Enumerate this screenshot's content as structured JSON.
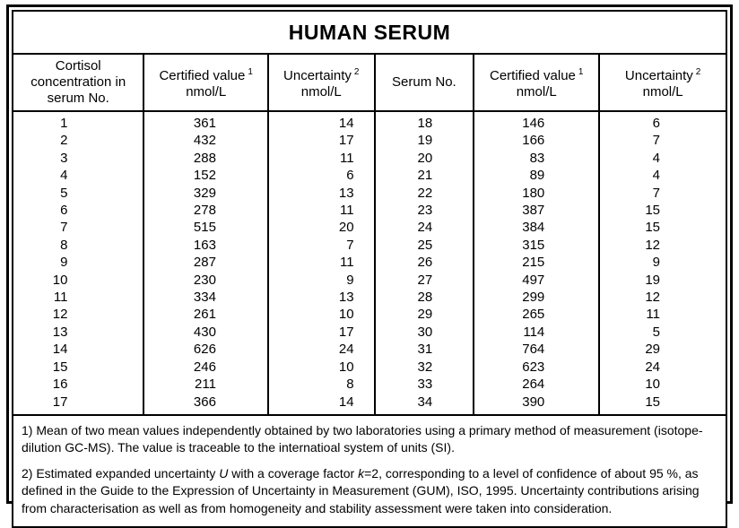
{
  "title": "HUMAN SERUM",
  "table": {
    "columns": [
      {
        "label": "Cortisol concentration in serum No.",
        "sup": "",
        "unit": ""
      },
      {
        "label": "Certified value",
        "sup": "1",
        "unit": "nmol/L"
      },
      {
        "label": "Uncertainty",
        "sup": "2",
        "unit": "nmol/L"
      },
      {
        "label": "Serum No.",
        "sup": "",
        "unit": ""
      },
      {
        "label": "Certified value",
        "sup": "1",
        "unit": "nmol/L"
      },
      {
        "label": "Uncertainty",
        "sup": "2",
        "unit": "nmol/L"
      }
    ],
    "rows": [
      [
        "1",
        "361",
        "14",
        "18",
        "146",
        "6"
      ],
      [
        "2",
        "432",
        "17",
        "19",
        "166",
        "7"
      ],
      [
        "3",
        "288",
        "11",
        "20",
        "83",
        "4"
      ],
      [
        "4",
        "152",
        "6",
        "21",
        "89",
        "4"
      ],
      [
        "5",
        "329",
        "13",
        "22",
        "180",
        "7"
      ],
      [
        "6",
        "278",
        "11",
        "23",
        "387",
        "15"
      ],
      [
        "7",
        "515",
        "20",
        "24",
        "384",
        "15"
      ],
      [
        "8",
        "163",
        "7",
        "25",
        "315",
        "12"
      ],
      [
        "9",
        "287",
        "11",
        "26",
        "215",
        "9"
      ],
      [
        "10",
        "230",
        "9",
        "27",
        "497",
        "19"
      ],
      [
        "11",
        "334",
        "13",
        "28",
        "299",
        "12"
      ],
      [
        "12",
        "261",
        "10",
        "29",
        "265",
        "11"
      ],
      [
        "13",
        "430",
        "17",
        "30",
        "114",
        "5"
      ],
      [
        "14",
        "626",
        "24",
        "31",
        "764",
        "29"
      ],
      [
        "15",
        "246",
        "10",
        "32",
        "623",
        "24"
      ],
      [
        "16",
        "211",
        "8",
        "33",
        "264",
        "10"
      ],
      [
        "17",
        "366",
        "14",
        "34",
        "390",
        "15"
      ]
    ]
  },
  "footnotes": [
    {
      "segments": [
        {
          "t": "1) Mean of two mean values independently obtained by two laboratories using a primary method of measurement (isotope-dilution GC-MS). The value is traceable to the internatioal system of units (SI).",
          "i": false
        }
      ]
    },
    {
      "segments": [
        {
          "t": "2) Estimated expanded uncertainty ",
          "i": false
        },
        {
          "t": "U",
          "i": true
        },
        {
          "t": " with a coverage factor ",
          "i": false
        },
        {
          "t": "k",
          "i": true
        },
        {
          "t": "=2, corresponding to a level of confidence of about 95 %, as defined in the Guide to the Expression of Uncertainty in Measurement (GUM), ISO, 1995. Uncertainty contributions arising from characterisation as well as from homogeneity and stability assessment were taken into consideration.",
          "i": false
        }
      ]
    }
  ],
  "colors": {
    "border": "#000000",
    "background": "#ffffff",
    "text": "#000000"
  }
}
